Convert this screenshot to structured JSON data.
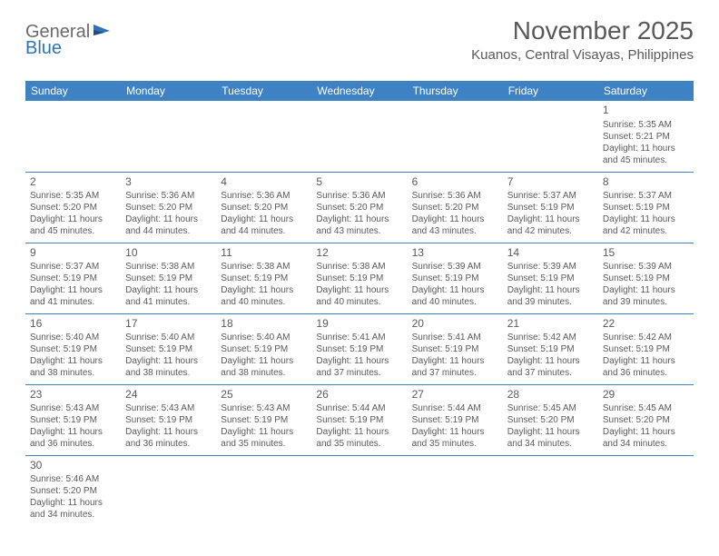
{
  "logo": {
    "text1": "General",
    "text2": "Blue"
  },
  "title": "November 2025",
  "location": "Kuanos, Central Visayas, Philippines",
  "colors": {
    "header_bg": "#3e82c4",
    "header_text": "#ffffff",
    "border": "#3e82c4",
    "text": "#5a5a5a",
    "title_text": "#595959",
    "logo_gray": "#6b6b6b",
    "logo_blue": "#2f72b8",
    "background": "#ffffff"
  },
  "typography": {
    "title_fontsize": 28,
    "location_fontsize": 15,
    "dayheader_fontsize": 12,
    "daynum_fontsize": 12,
    "body_fontsize": 10
  },
  "day_headers": [
    "Sunday",
    "Monday",
    "Tuesday",
    "Wednesday",
    "Thursday",
    "Friday",
    "Saturday"
  ],
  "weeks": [
    [
      null,
      null,
      null,
      null,
      null,
      null,
      {
        "n": "1",
        "sr": "5:35 AM",
        "ss": "5:21 PM",
        "dl": "11 hours and 45 minutes."
      }
    ],
    [
      {
        "n": "2",
        "sr": "5:35 AM",
        "ss": "5:20 PM",
        "dl": "11 hours and 45 minutes."
      },
      {
        "n": "3",
        "sr": "5:36 AM",
        "ss": "5:20 PM",
        "dl": "11 hours and 44 minutes."
      },
      {
        "n": "4",
        "sr": "5:36 AM",
        "ss": "5:20 PM",
        "dl": "11 hours and 44 minutes."
      },
      {
        "n": "5",
        "sr": "5:36 AM",
        "ss": "5:20 PM",
        "dl": "11 hours and 43 minutes."
      },
      {
        "n": "6",
        "sr": "5:36 AM",
        "ss": "5:20 PM",
        "dl": "11 hours and 43 minutes."
      },
      {
        "n": "7",
        "sr": "5:37 AM",
        "ss": "5:19 PM",
        "dl": "11 hours and 42 minutes."
      },
      {
        "n": "8",
        "sr": "5:37 AM",
        "ss": "5:19 PM",
        "dl": "11 hours and 42 minutes."
      }
    ],
    [
      {
        "n": "9",
        "sr": "5:37 AM",
        "ss": "5:19 PM",
        "dl": "11 hours and 41 minutes."
      },
      {
        "n": "10",
        "sr": "5:38 AM",
        "ss": "5:19 PM",
        "dl": "11 hours and 41 minutes."
      },
      {
        "n": "11",
        "sr": "5:38 AM",
        "ss": "5:19 PM",
        "dl": "11 hours and 40 minutes."
      },
      {
        "n": "12",
        "sr": "5:38 AM",
        "ss": "5:19 PM",
        "dl": "11 hours and 40 minutes."
      },
      {
        "n": "13",
        "sr": "5:39 AM",
        "ss": "5:19 PM",
        "dl": "11 hours and 40 minutes."
      },
      {
        "n": "14",
        "sr": "5:39 AM",
        "ss": "5:19 PM",
        "dl": "11 hours and 39 minutes."
      },
      {
        "n": "15",
        "sr": "5:39 AM",
        "ss": "5:19 PM",
        "dl": "11 hours and 39 minutes."
      }
    ],
    [
      {
        "n": "16",
        "sr": "5:40 AM",
        "ss": "5:19 PM",
        "dl": "11 hours and 38 minutes."
      },
      {
        "n": "17",
        "sr": "5:40 AM",
        "ss": "5:19 PM",
        "dl": "11 hours and 38 minutes."
      },
      {
        "n": "18",
        "sr": "5:40 AM",
        "ss": "5:19 PM",
        "dl": "11 hours and 38 minutes."
      },
      {
        "n": "19",
        "sr": "5:41 AM",
        "ss": "5:19 PM",
        "dl": "11 hours and 37 minutes."
      },
      {
        "n": "20",
        "sr": "5:41 AM",
        "ss": "5:19 PM",
        "dl": "11 hours and 37 minutes."
      },
      {
        "n": "21",
        "sr": "5:42 AM",
        "ss": "5:19 PM",
        "dl": "11 hours and 37 minutes."
      },
      {
        "n": "22",
        "sr": "5:42 AM",
        "ss": "5:19 PM",
        "dl": "11 hours and 36 minutes."
      }
    ],
    [
      {
        "n": "23",
        "sr": "5:43 AM",
        "ss": "5:19 PM",
        "dl": "11 hours and 36 minutes."
      },
      {
        "n": "24",
        "sr": "5:43 AM",
        "ss": "5:19 PM",
        "dl": "11 hours and 36 minutes."
      },
      {
        "n": "25",
        "sr": "5:43 AM",
        "ss": "5:19 PM",
        "dl": "11 hours and 35 minutes."
      },
      {
        "n": "26",
        "sr": "5:44 AM",
        "ss": "5:19 PM",
        "dl": "11 hours and 35 minutes."
      },
      {
        "n": "27",
        "sr": "5:44 AM",
        "ss": "5:19 PM",
        "dl": "11 hours and 35 minutes."
      },
      {
        "n": "28",
        "sr": "5:45 AM",
        "ss": "5:20 PM",
        "dl": "11 hours and 34 minutes."
      },
      {
        "n": "29",
        "sr": "5:45 AM",
        "ss": "5:20 PM",
        "dl": "11 hours and 34 minutes."
      }
    ],
    [
      {
        "n": "30",
        "sr": "5:46 AM",
        "ss": "5:20 PM",
        "dl": "11 hours and 34 minutes."
      },
      null,
      null,
      null,
      null,
      null,
      null
    ]
  ],
  "labels": {
    "sunrise": "Sunrise: ",
    "sunset": "Sunset: ",
    "daylight": "Daylight: "
  }
}
